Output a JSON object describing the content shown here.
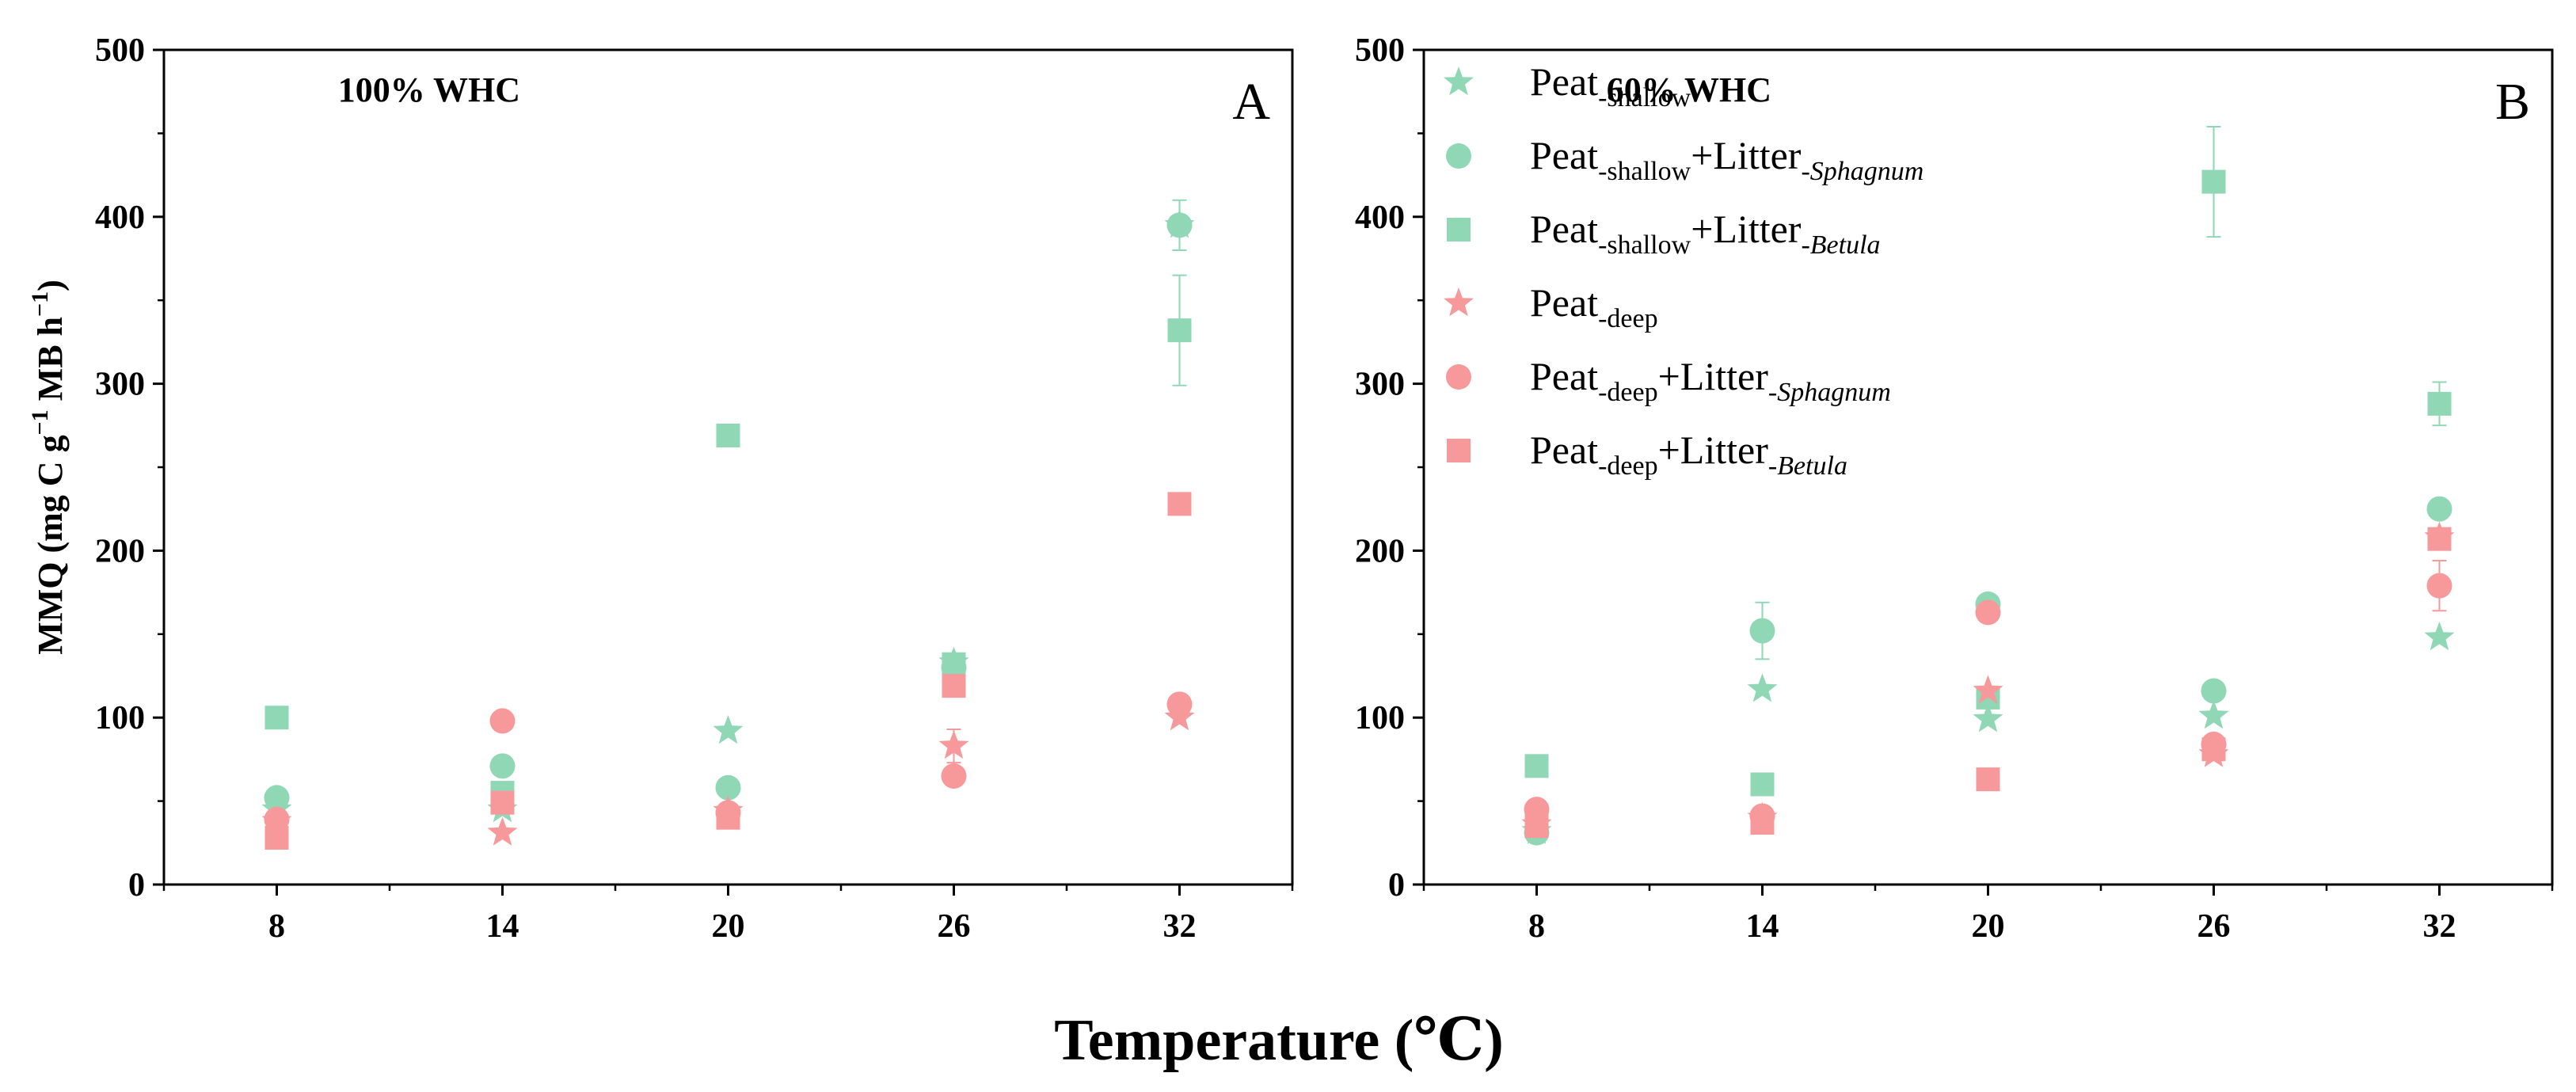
{
  "figure": {
    "y_label_main": "MMQ (mg C g",
    "y_label_exp": "−1",
    "y_label_mid": " MB h",
    "y_label_end": ")",
    "x_label": "Temperature (℃)"
  },
  "colors": {
    "shallow": "#8fd7b5",
    "deep": "#f7999b",
    "axis": "#000000"
  },
  "legend": [
    {
      "base": "Peat",
      "base_sub": "-shallow",
      "plus": "",
      "litter_sub": "",
      "series": "shallow-peat",
      "marker": "star"
    },
    {
      "base": "Peat",
      "base_sub": "-shallow",
      "plus": "+Litter",
      "litter_sub": "-Sphagnum",
      "series": "shallow-sphagnum",
      "marker": "circle"
    },
    {
      "base": "Peat",
      "base_sub": "-shallow",
      "plus": "+Litter",
      "litter_sub": "-Betula",
      "series": "shallow-betula",
      "marker": "square"
    },
    {
      "base": "Peat",
      "base_sub": "-deep",
      "plus": "",
      "litter_sub": "",
      "series": "deep-peat",
      "marker": "star"
    },
    {
      "base": "Peat",
      "base_sub": "-deep",
      "plus": "+Litter",
      "litter_sub": "-Sphagnum",
      "series": "deep-sphagnum",
      "marker": "circle"
    },
    {
      "base": "Peat",
      "base_sub": "-deep",
      "plus": "+Litter",
      "litter_sub": "-Betula",
      "series": "deep-betula",
      "marker": "square"
    }
  ],
  "chart_data": [
    {
      "type": "scatter",
      "panel_label": "A",
      "title": "100% WHC",
      "xlabel": "Temperature (℃)",
      "ylabel": "MMQ (mg C g−1 MB h−1)",
      "x_ticks": [
        8,
        14,
        20,
        26,
        32
      ],
      "xlim": [
        5,
        35
      ],
      "ylim": [
        0,
        500
      ],
      "y_ticks": [
        0,
        100,
        200,
        300,
        400,
        500
      ],
      "series": [
        {
          "name": "shallow-peat",
          "group": "shallow",
          "marker": "star",
          "x": [
            8,
            14,
            20,
            26,
            32
          ],
          "y": [
            45,
            45,
            92,
            133,
            395
          ]
        },
        {
          "name": "shallow-sphagnum",
          "group": "shallow",
          "marker": "circle",
          "x": [
            8,
            14,
            20,
            26,
            32
          ],
          "y": [
            52,
            71,
            58,
            130,
            395
          ],
          "err": [
            0,
            0,
            0,
            0,
            15
          ]
        },
        {
          "name": "shallow-betula",
          "group": "shallow",
          "marker": "square",
          "x": [
            8,
            14,
            20,
            26,
            32
          ],
          "y": [
            100,
            55,
            269,
            132,
            332
          ],
          "err": [
            0,
            0,
            5,
            0,
            33
          ]
        },
        {
          "name": "deep-peat",
          "group": "deep",
          "marker": "star",
          "x": [
            8,
            14,
            20,
            26,
            32
          ],
          "y": [
            38,
            31,
            44,
            83,
            100
          ],
          "err": [
            0,
            0,
            0,
            10,
            0
          ]
        },
        {
          "name": "deep-sphagnum",
          "group": "deep",
          "marker": "circle",
          "x": [
            8,
            14,
            20,
            26,
            32
          ],
          "y": [
            39,
            98,
            43,
            65,
            108
          ],
          "err": [
            0,
            0,
            0,
            0,
            6
          ]
        },
        {
          "name": "deep-betula",
          "group": "deep",
          "marker": "square",
          "x": [
            8,
            14,
            20,
            26,
            32
          ],
          "y": [
            28,
            49,
            40,
            119,
            228
          ]
        }
      ]
    },
    {
      "type": "scatter",
      "panel_label": "B",
      "title": "60% WHC",
      "xlabel": "Temperature (℃)",
      "ylabel": "MMQ (mg C g−1 MB h−1)",
      "x_ticks": [
        8,
        14,
        20,
        26,
        32
      ],
      "xlim": [
        5,
        35
      ],
      "ylim": [
        0,
        500
      ],
      "y_ticks": [
        0,
        100,
        200,
        300,
        400,
        500
      ],
      "series": [
        {
          "name": "shallow-peat",
          "group": "shallow",
          "marker": "star",
          "x": [
            8,
            14,
            20,
            26,
            32
          ],
          "y": [
            32,
            117,
            99,
            101,
            148
          ]
        },
        {
          "name": "shallow-sphagnum",
          "group": "shallow",
          "marker": "circle",
          "x": [
            8,
            14,
            20,
            26,
            32
          ],
          "y": [
            31,
            152,
            168,
            116,
            225
          ],
          "err": [
            0,
            17,
            0,
            0,
            0
          ]
        },
        {
          "name": "shallow-betula",
          "group": "shallow",
          "marker": "square",
          "x": [
            8,
            14,
            20,
            26,
            32
          ],
          "y": [
            71,
            60,
            112,
            421,
            288
          ],
          "err": [
            0,
            0,
            0,
            33,
            13
          ]
        },
        {
          "name": "deep-peat",
          "group": "deep",
          "marker": "star",
          "x": [
            8,
            14,
            20,
            26,
            32
          ],
          "y": [
            36,
            40,
            116,
            78,
            208
          ]
        },
        {
          "name": "deep-sphagnum",
          "group": "deep",
          "marker": "circle",
          "x": [
            8,
            14,
            20,
            26,
            32
          ],
          "y": [
            45,
            41,
            163,
            84,
            179
          ],
          "err": [
            0,
            0,
            0,
            0,
            15
          ]
        },
        {
          "name": "deep-betula",
          "group": "deep",
          "marker": "square",
          "x": [
            8,
            14,
            20,
            26,
            32
          ],
          "y": [
            35,
            37,
            63,
            81,
            207
          ],
          "err": [
            0,
            0,
            0,
            0,
            0
          ]
        }
      ]
    }
  ]
}
